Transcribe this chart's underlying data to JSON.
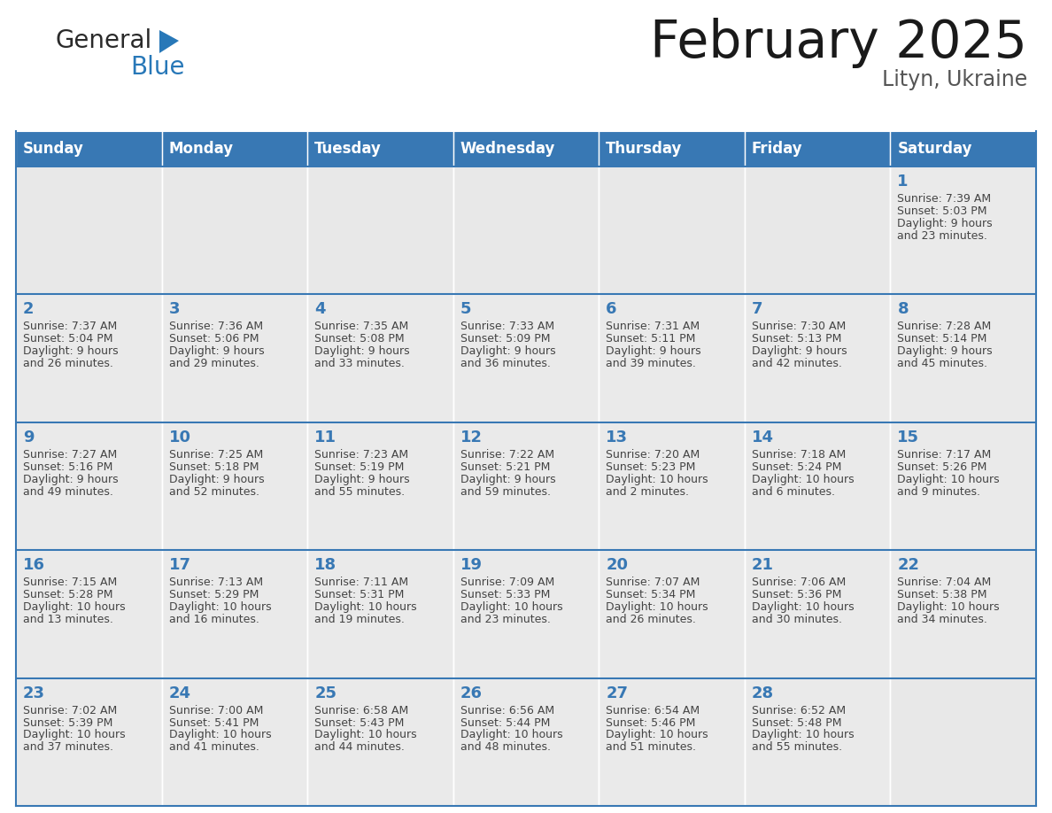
{
  "title": "February 2025",
  "subtitle": "Lityn, Ukraine",
  "header_color": "#3878b4",
  "header_text_color": "#ffffff",
  "days_of_week": [
    "Sunday",
    "Monday",
    "Tuesday",
    "Wednesday",
    "Thursday",
    "Friday",
    "Saturday"
  ],
  "background_color": "#ffffff",
  "cell_bg_color": "#eaeaea",
  "empty_cell_bg_color": "#e8e8e8",
  "cell_border_color": "#3878b4",
  "day_number_color": "#3878b4",
  "text_color": "#444444",
  "calendar_data": [
    [
      {
        "day": null,
        "sunrise": null,
        "sunset": null,
        "daylight": null
      },
      {
        "day": null,
        "sunrise": null,
        "sunset": null,
        "daylight": null
      },
      {
        "day": null,
        "sunrise": null,
        "sunset": null,
        "daylight": null
      },
      {
        "day": null,
        "sunrise": null,
        "sunset": null,
        "daylight": null
      },
      {
        "day": null,
        "sunrise": null,
        "sunset": null,
        "daylight": null
      },
      {
        "day": null,
        "sunrise": null,
        "sunset": null,
        "daylight": null
      },
      {
        "day": 1,
        "sunrise": "7:39 AM",
        "sunset": "5:03 PM",
        "daylight": "9 hours and 23 minutes."
      }
    ],
    [
      {
        "day": 2,
        "sunrise": "7:37 AM",
        "sunset": "5:04 PM",
        "daylight": "9 hours and 26 minutes."
      },
      {
        "day": 3,
        "sunrise": "7:36 AM",
        "sunset": "5:06 PM",
        "daylight": "9 hours and 29 minutes."
      },
      {
        "day": 4,
        "sunrise": "7:35 AM",
        "sunset": "5:08 PM",
        "daylight": "9 hours and 33 minutes."
      },
      {
        "day": 5,
        "sunrise": "7:33 AM",
        "sunset": "5:09 PM",
        "daylight": "9 hours and 36 minutes."
      },
      {
        "day": 6,
        "sunrise": "7:31 AM",
        "sunset": "5:11 PM",
        "daylight": "9 hours and 39 minutes."
      },
      {
        "day": 7,
        "sunrise": "7:30 AM",
        "sunset": "5:13 PM",
        "daylight": "9 hours and 42 minutes."
      },
      {
        "day": 8,
        "sunrise": "7:28 AM",
        "sunset": "5:14 PM",
        "daylight": "9 hours and 45 minutes."
      }
    ],
    [
      {
        "day": 9,
        "sunrise": "7:27 AM",
        "sunset": "5:16 PM",
        "daylight": "9 hours and 49 minutes."
      },
      {
        "day": 10,
        "sunrise": "7:25 AM",
        "sunset": "5:18 PM",
        "daylight": "9 hours and 52 minutes."
      },
      {
        "day": 11,
        "sunrise": "7:23 AM",
        "sunset": "5:19 PM",
        "daylight": "9 hours and 55 minutes."
      },
      {
        "day": 12,
        "sunrise": "7:22 AM",
        "sunset": "5:21 PM",
        "daylight": "9 hours and 59 minutes."
      },
      {
        "day": 13,
        "sunrise": "7:20 AM",
        "sunset": "5:23 PM",
        "daylight": "10 hours and 2 minutes."
      },
      {
        "day": 14,
        "sunrise": "7:18 AM",
        "sunset": "5:24 PM",
        "daylight": "10 hours and 6 minutes."
      },
      {
        "day": 15,
        "sunrise": "7:17 AM",
        "sunset": "5:26 PM",
        "daylight": "10 hours and 9 minutes."
      }
    ],
    [
      {
        "day": 16,
        "sunrise": "7:15 AM",
        "sunset": "5:28 PM",
        "daylight": "10 hours and 13 minutes."
      },
      {
        "day": 17,
        "sunrise": "7:13 AM",
        "sunset": "5:29 PM",
        "daylight": "10 hours and 16 minutes."
      },
      {
        "day": 18,
        "sunrise": "7:11 AM",
        "sunset": "5:31 PM",
        "daylight": "10 hours and 19 minutes."
      },
      {
        "day": 19,
        "sunrise": "7:09 AM",
        "sunset": "5:33 PM",
        "daylight": "10 hours and 23 minutes."
      },
      {
        "day": 20,
        "sunrise": "7:07 AM",
        "sunset": "5:34 PM",
        "daylight": "10 hours and 26 minutes."
      },
      {
        "day": 21,
        "sunrise": "7:06 AM",
        "sunset": "5:36 PM",
        "daylight": "10 hours and 30 minutes."
      },
      {
        "day": 22,
        "sunrise": "7:04 AM",
        "sunset": "5:38 PM",
        "daylight": "10 hours and 34 minutes."
      }
    ],
    [
      {
        "day": 23,
        "sunrise": "7:02 AM",
        "sunset": "5:39 PM",
        "daylight": "10 hours and 37 minutes."
      },
      {
        "day": 24,
        "sunrise": "7:00 AM",
        "sunset": "5:41 PM",
        "daylight": "10 hours and 41 minutes."
      },
      {
        "day": 25,
        "sunrise": "6:58 AM",
        "sunset": "5:43 PM",
        "daylight": "10 hours and 44 minutes."
      },
      {
        "day": 26,
        "sunrise": "6:56 AM",
        "sunset": "5:44 PM",
        "daylight": "10 hours and 48 minutes."
      },
      {
        "day": 27,
        "sunrise": "6:54 AM",
        "sunset": "5:46 PM",
        "daylight": "10 hours and 51 minutes."
      },
      {
        "day": 28,
        "sunrise": "6:52 AM",
        "sunset": "5:48 PM",
        "daylight": "10 hours and 55 minutes."
      },
      {
        "day": null,
        "sunrise": null,
        "sunset": null,
        "daylight": null
      }
    ]
  ],
  "logo_general_color": "#2a2a2a",
  "logo_blue_color": "#2878b8",
  "logo_triangle_color": "#2878b8",
  "title_fontsize": 42,
  "subtitle_fontsize": 17,
  "header_fontsize": 12,
  "day_number_fontsize": 13,
  "cell_text_fontsize": 9
}
